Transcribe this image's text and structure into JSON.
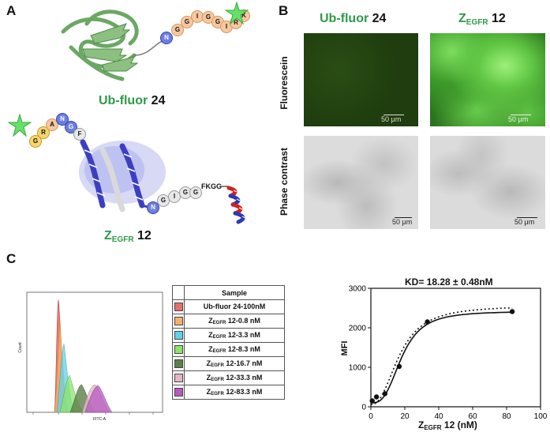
{
  "panels": {
    "a": "A",
    "b": "B",
    "c": "C"
  },
  "panel_a": {
    "ub_name": "Ub-fluor",
    "ub_num": "24",
    "ub_tag": [
      "N",
      "G",
      "G",
      "I",
      "G",
      "G",
      "I",
      "R",
      "K"
    ],
    "z_main": "Z",
    "z_sub": "EGFR",
    "z_num": "12",
    "z_tag": [
      "G",
      "R",
      "A",
      "N",
      "G",
      "F"
    ],
    "z_linker": [
      "N",
      "G",
      "I",
      "G",
      "G"
    ],
    "z_linker_text": "FKGG"
  },
  "panel_b": {
    "col1_name": "Ub-fluor",
    "col1_num": "24",
    "col2_main": "Z",
    "col2_sub": "EGFR",
    "col2_num": "12",
    "row1": "Fluorescein",
    "row2": "Phase contrast",
    "scale_bar": "50 μm"
  },
  "panel_c": {
    "legend_header": "Sample",
    "legend": [
      {
        "pre": "Ub-fluor 24-100nM",
        "sub": "",
        "post": "",
        "color": "#e8706a"
      },
      {
        "pre": "Z",
        "sub": "EGFR",
        "post": " 12-0.8 nM",
        "color": "#f6b26b"
      },
      {
        "pre": "Z",
        "sub": "EGFR",
        "post": " 12-3.3 nM",
        "color": "#5fd3e8"
      },
      {
        "pre": "Z",
        "sub": "EGFR",
        "post": " 12-8.3 nM",
        "color": "#8de46b"
      },
      {
        "pre": "Z",
        "sub": "EGFR",
        "post": " 12-16.7 nM",
        "color": "#5d7f4a"
      },
      {
        "pre": "Z",
        "sub": "EGFR",
        "post": " 12-33.3 nM",
        "color": "#e3b8c4"
      },
      {
        "pre": "Z",
        "sub": "EGFR",
        "post": " 12-83.3 nM",
        "color": "#b659c2"
      }
    ],
    "histogram": {
      "ylabel": "Count",
      "xlabel": "FITC-A"
    }
  },
  "chart_data": {
    "type": "scatter",
    "title": "KD= 18.28 ± 0.48nM",
    "xlabel_main": "Z",
    "xlabel_sub": "EGFR",
    "xlabel_post": " 12 (nM)",
    "ylabel": "MFI",
    "xlim": [
      0,
      100
    ],
    "ylim": [
      0,
      3000
    ],
    "xticks": [
      0,
      20,
      40,
      60,
      80,
      100
    ],
    "yticks": [
      0,
      1000,
      2000,
      3000
    ],
    "points": {
      "x": [
        0.8,
        3.3,
        8.3,
        16.7,
        33.3,
        83.3
      ],
      "y": [
        150,
        250,
        330,
        1020,
        2150,
        2410
      ]
    },
    "fit_solid": {
      "bottom": 100,
      "top": 2420,
      "ec50": 18.28,
      "hill": 3.0
    },
    "fit_dotted": {
      "bottom": 60,
      "top": 2560,
      "ec50": 17.0,
      "hill": 2.4
    }
  }
}
